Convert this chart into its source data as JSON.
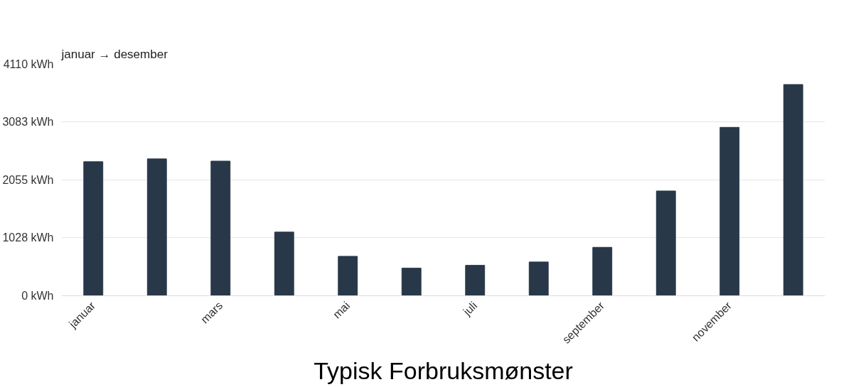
{
  "chart_data": {
    "type": "bar",
    "title": "januar → desember",
    "categories": [
      "januar",
      null,
      "mars",
      null,
      "mai",
      null,
      "juli",
      null,
      "september",
      null,
      "november",
      null
    ],
    "series": [
      {
        "color": "#283849",
        "values": [
          2380,
          2430,
          2390,
          1130,
          700,
          490,
          540,
          600,
          860,
          1860,
          2990,
          3750
        ]
      }
    ],
    "ylim": [
      0,
      4110
    ],
    "yticks": [
      {
        "value": 0,
        "label": "0 kWh"
      },
      {
        "value": 1028,
        "label": "1028 kWh"
      },
      {
        "value": 2055,
        "label": "2055 kWh"
      },
      {
        "value": 3083,
        "label": "3083 kWh"
      },
      {
        "value": 4110,
        "label": "4110 kWh"
      }
    ],
    "grid": "y",
    "annotations": [
      "Typisk Forbruksmønster"
    ]
  }
}
